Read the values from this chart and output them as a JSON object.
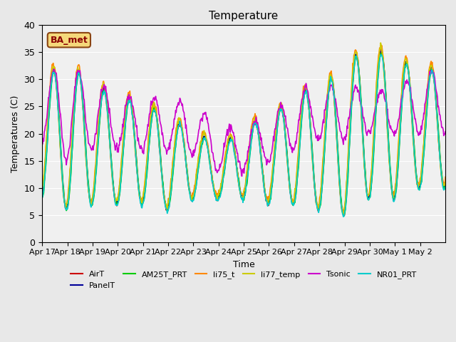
{
  "title": "Temperature",
  "xlabel": "Time",
  "ylabel": "Temperatures (C)",
  "ylim": [
    0,
    40
  ],
  "yticks": [
    0,
    5,
    10,
    15,
    20,
    25,
    30,
    35,
    40
  ],
  "annotation": "BA_met",
  "xtick_labels": [
    "Apr 17",
    "Apr 18",
    "Apr 19",
    "Apr 20",
    "Apr 21",
    "Apr 22",
    "Apr 23",
    "Apr 24",
    "Apr 25",
    "Apr 26",
    "Apr 27",
    "Apr 28",
    "Apr 29",
    "Apr 30",
    "May 1",
    "May 2"
  ],
  "series": {
    "AirT": {
      "color": "#cc0000",
      "lw": 1.2
    },
    "PanelT": {
      "color": "#000099",
      "lw": 1.2
    },
    "AM25T_PRT": {
      "color": "#00cc00",
      "lw": 1.2
    },
    "li75_t": {
      "color": "#ff8800",
      "lw": 1.2
    },
    "li77_temp": {
      "color": "#cccc00",
      "lw": 1.2
    },
    "Tsonic": {
      "color": "#cc00cc",
      "lw": 1.2
    },
    "NR01_PRT": {
      "color": "#00cccc",
      "lw": 1.2
    }
  },
  "legend_order": [
    "AirT",
    "PanelT",
    "AM25T_PRT",
    "li75_t",
    "li77_temp",
    "Tsonic",
    "NR01_PRT"
  ],
  "bg_color": "#e8e8e8",
  "plot_bg_color": "#f0f0f0"
}
